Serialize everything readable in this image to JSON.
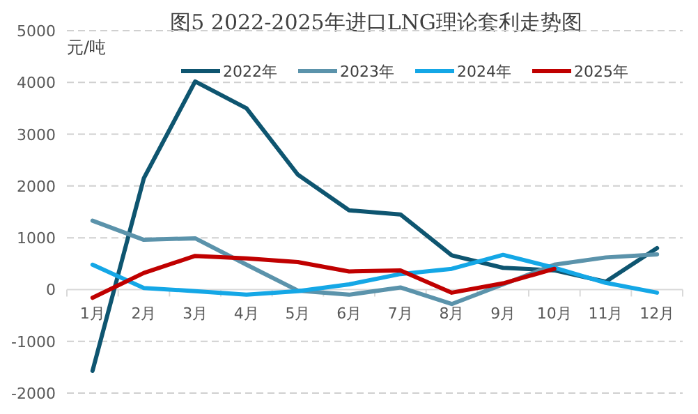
{
  "chart_data": {
    "type": "line",
    "title": "图5 2022-2025年进口LNG理论套利走势图",
    "ylabel": "元/吨",
    "categories": [
      "1月",
      "2月",
      "3月",
      "4月",
      "5月",
      "6月",
      "7月",
      "8月",
      "9月",
      "10月",
      "11月",
      "12月"
    ],
    "series": [
      {
        "name": "2022年",
        "color": "#0e5570",
        "values": [
          -1570,
          2150,
          4020,
          3500,
          2220,
          1530,
          1450,
          660,
          420,
          370,
          150,
          800
        ]
      },
      {
        "name": "2023年",
        "color": "#5b93ab",
        "values": [
          1330,
          960,
          990,
          480,
          -20,
          -100,
          40,
          -280,
          100,
          480,
          620,
          680
        ]
      },
      {
        "name": "2024年",
        "color": "#14a7e6",
        "values": [
          480,
          30,
          -30,
          -100,
          -30,
          100,
          300,
          400,
          670,
          420,
          130,
          -60
        ]
      },
      {
        "name": "2025年",
        "color": "#c00000",
        "values": [
          -160,
          320,
          650,
          600,
          530,
          350,
          370,
          -60,
          120,
          400,
          null,
          null
        ]
      }
    ],
    "ylim": [
      -2000,
      5000
    ],
    "yticks": [
      -2000,
      -1000,
      0,
      1000,
      2000,
      3000,
      4000,
      5000
    ],
    "grid": "y",
    "legend": "top",
    "line_style": "solid",
    "marker": "none"
  }
}
